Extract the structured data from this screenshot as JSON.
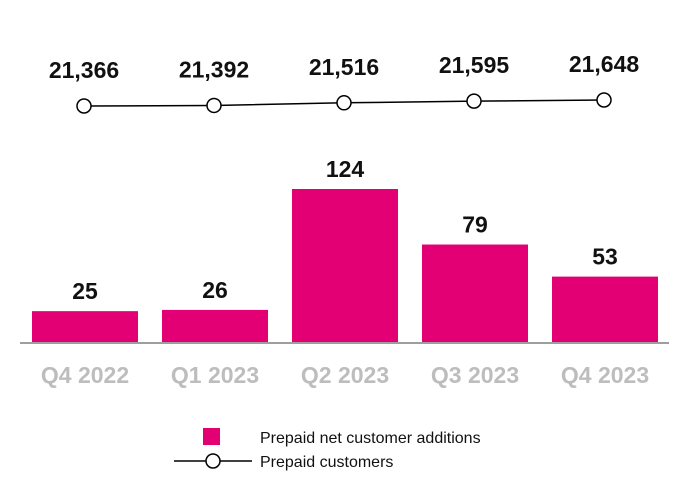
{
  "chart_data": {
    "type": "bar",
    "categories": [
      "Q4 2022",
      "Q1 2023",
      "Q2 2023",
      "Q3 2023",
      "Q4 2023"
    ],
    "series": [
      {
        "name": "Prepaid net customer additions",
        "type": "bar",
        "values": [
          25,
          26,
          124,
          79,
          53
        ],
        "color": "#E20074"
      },
      {
        "name": "Prepaid customers",
        "type": "line",
        "values": [
          21366,
          21392,
          21516,
          21595,
          21648
        ],
        "color": "#000000"
      }
    ],
    "bar_value_labels": [
      "25",
      "26",
      "124",
      "79",
      "53"
    ],
    "line_value_labels": [
      "21,366",
      "21,392",
      "21,516",
      "21,595",
      "21,648"
    ],
    "legend": {
      "position": "bottom-center",
      "items": [
        "Prepaid net customer additions",
        "Prepaid customers"
      ]
    },
    "grid": false
  }
}
